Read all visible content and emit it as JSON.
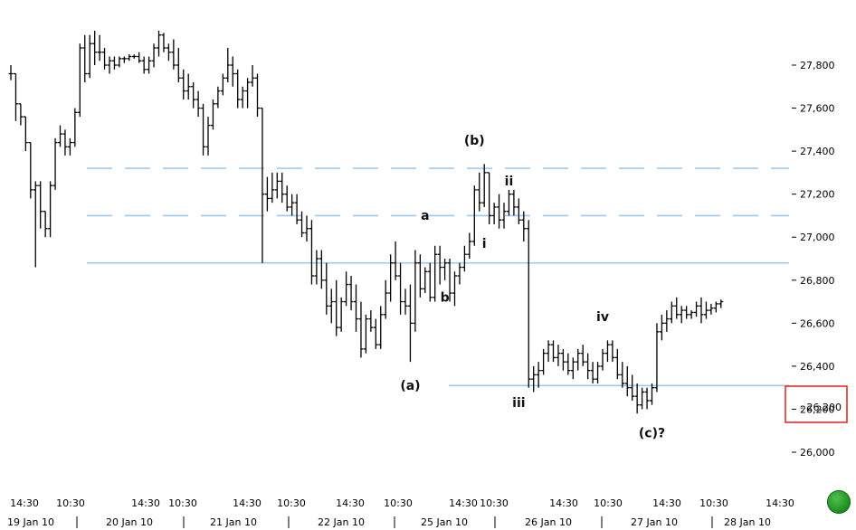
{
  "chart_data": {
    "type": "ohlc",
    "y_ticks": [
      "27,800",
      "27,600",
      "27,400",
      "27,200",
      "27,000",
      "26,800",
      "26,600",
      "26,400",
      "26,200",
      "26,000"
    ],
    "y_tick_values": [
      27800,
      27600,
      27400,
      27200,
      27000,
      26800,
      26600,
      26400,
      26200,
      26000
    ],
    "ylim": [
      25920,
      27960
    ],
    "current_price_box": "26,200",
    "x_time_ticks": [
      "14:30",
      "10:30",
      "14:30",
      "10:30",
      "14:30",
      "10:30",
      "14:30",
      "10:30",
      "14:30",
      "10:30",
      "14:30",
      "10:30",
      "14:30",
      "10:30",
      "14:30"
    ],
    "x_date_ticks": [
      "19 Jan 10",
      "20 Jan 10",
      "21 Jan 10",
      "22 Jan 10",
      "25 Jan 10",
      "26 Jan 10",
      "27 Jan 10",
      "28 Jan 10"
    ],
    "horizontal_levels": [
      {
        "value": 27320,
        "style": "dashed"
      },
      {
        "value": 27100,
        "style": "dashed"
      },
      {
        "value": 26880,
        "style": "solid"
      },
      {
        "value": 26310,
        "style": "solid"
      }
    ],
    "wave_labels": [
      {
        "text": "(b)",
        "bar": 94,
        "value": 27430
      },
      {
        "text": "ii",
        "bar": 101,
        "value": 27240
      },
      {
        "text": "a",
        "bar": 84,
        "value": 27080
      },
      {
        "text": "i",
        "bar": 96,
        "value": 26950
      },
      {
        "text": "b",
        "bar": 88,
        "value": 26700
      },
      {
        "text": "(a)",
        "bar": 81,
        "value": 26290
      },
      {
        "text": "iii",
        "bar": 103,
        "value": 26210
      },
      {
        "text": "iv",
        "bar": 120,
        "value": 26610
      },
      {
        "text": "(c)?",
        "bar": 130,
        "value": 26070
      }
    ],
    "ohlc": [
      [
        27760,
        27800,
        27730,
        27760
      ],
      [
        27760,
        27760,
        27540,
        27620
      ],
      [
        27620,
        27620,
        27520,
        27560
      ],
      [
        27560,
        27560,
        27400,
        27440
      ],
      [
        27440,
        27440,
        27180,
        27220
      ],
      [
        27220,
        27260,
        26860,
        27240
      ],
      [
        27240,
        27260,
        27040,
        27120
      ],
      [
        27120,
        27120,
        27000,
        27040
      ],
      [
        27040,
        27260,
        27000,
        27240
      ],
      [
        27240,
        27460,
        27220,
        27440
      ],
      [
        27440,
        27520,
        27420,
        27480
      ],
      [
        27480,
        27500,
        27380,
        27420
      ],
      [
        27420,
        27460,
        27380,
        27440
      ],
      [
        27440,
        27600,
        27420,
        27580
      ],
      [
        27580,
        27900,
        27560,
        27880
      ],
      [
        27880,
        27940,
        27720,
        27760
      ],
      [
        27760,
        27940,
        27740,
        27900
      ],
      [
        27900,
        27960,
        27800,
        27860
      ],
      [
        27860,
        27940,
        27820,
        27860
      ],
      [
        27860,
        27880,
        27780,
        27800
      ],
      [
        27800,
        27840,
        27760,
        27820
      ],
      [
        27820,
        27840,
        27780,
        27800
      ],
      [
        27800,
        27840,
        27790,
        27830
      ],
      [
        27830,
        27840,
        27810,
        27830
      ],
      [
        27830,
        27850,
        27820,
        27840
      ],
      [
        27840,
        27850,
        27830,
        27840
      ],
      [
        27840,
        27860,
        27810,
        27820
      ],
      [
        27820,
        27840,
        27760,
        27780
      ],
      [
        27780,
        27840,
        27760,
        27820
      ],
      [
        27820,
        27900,
        27790,
        27880
      ],
      [
        27880,
        27960,
        27840,
        27940
      ],
      [
        27940,
        27950,
        27860,
        27880
      ],
      [
        27880,
        27900,
        27820,
        27860
      ],
      [
        27860,
        27920,
        27780,
        27800
      ],
      [
        27800,
        27880,
        27720,
        27740
      ],
      [
        27740,
        27780,
        27640,
        27680
      ],
      [
        27680,
        27760,
        27640,
        27700
      ],
      [
        27700,
        27720,
        27600,
        27640
      ],
      [
        27640,
        27680,
        27560,
        27600
      ],
      [
        27600,
        27620,
        27380,
        27420
      ],
      [
        27420,
        27560,
        27380,
        27520
      ],
      [
        27520,
        27640,
        27500,
        27620
      ],
      [
        27620,
        27700,
        27600,
        27680
      ],
      [
        27680,
        27760,
        27660,
        27740
      ],
      [
        27740,
        27880,
        27720,
        27800
      ],
      [
        27800,
        27840,
        27700,
        27760
      ],
      [
        27760,
        27780,
        27600,
        27640
      ],
      [
        27640,
        27700,
        27600,
        27680
      ],
      [
        27680,
        27740,
        27600,
        27720
      ],
      [
        27720,
        27800,
        27700,
        27740
      ],
      [
        27740,
        27760,
        27560,
        27600
      ],
      [
        27600,
        27600,
        26880,
        27200
      ],
      [
        27200,
        27280,
        27120,
        27180
      ],
      [
        27180,
        27300,
        27160,
        27220
      ],
      [
        27220,
        27300,
        27180,
        27260
      ],
      [
        27260,
        27300,
        27160,
        27200
      ],
      [
        27200,
        27240,
        27120,
        27140
      ],
      [
        27140,
        27200,
        27100,
        27160
      ],
      [
        27160,
        27200,
        27060,
        27080
      ],
      [
        27080,
        27120,
        27000,
        27020
      ],
      [
        27020,
        27100,
        26980,
        27040
      ],
      [
        27040,
        27080,
        26780,
        26820
      ],
      [
        26820,
        26940,
        26780,
        26900
      ],
      [
        26900,
        26940,
        26760,
        26800
      ],
      [
        26800,
        26880,
        26640,
        26680
      ],
      [
        26680,
        26760,
        26600,
        26700
      ],
      [
        26700,
        26800,
        26540,
        26580
      ],
      [
        26580,
        26720,
        26560,
        26700
      ],
      [
        26700,
        26840,
        26680,
        26780
      ],
      [
        26780,
        26820,
        26660,
        26700
      ],
      [
        26700,
        26780,
        26560,
        26620
      ],
      [
        26620,
        26700,
        26440,
        26480
      ],
      [
        26480,
        26640,
        26460,
        26620
      ],
      [
        26620,
        26660,
        26560,
        26580
      ],
      [
        26580,
        26620,
        26480,
        26500
      ],
      [
        26500,
        26680,
        26480,
        26640
      ],
      [
        26640,
        26800,
        26620,
        26740
      ],
      [
        26740,
        26920,
        26700,
        26880
      ],
      [
        26880,
        26980,
        26800,
        26820
      ],
      [
        26820,
        26880,
        26640,
        26700
      ],
      [
        26700,
        26760,
        26640,
        26680
      ],
      [
        26680,
        26780,
        26420,
        26600
      ],
      [
        26600,
        26940,
        26560,
        26880
      ],
      [
        26880,
        26920,
        26720,
        26760
      ],
      [
        26760,
        26860,
        26740,
        26840
      ],
      [
        26840,
        26880,
        26700,
        26720
      ],
      [
        26720,
        26960,
        26700,
        26920
      ],
      [
        26920,
        26960,
        26780,
        26860
      ],
      [
        26860,
        26900,
        26800,
        26880
      ],
      [
        26880,
        26900,
        26700,
        26740
      ],
      [
        26740,
        26840,
        26680,
        26820
      ],
      [
        26820,
        26880,
        26780,
        26860
      ],
      [
        26860,
        26960,
        26840,
        26920
      ],
      [
        26920,
        27020,
        26900,
        26980
      ],
      [
        26980,
        27240,
        26960,
        27220
      ],
      [
        27220,
        27300,
        27120,
        27160
      ],
      [
        27160,
        27340,
        27140,
        27300
      ],
      [
        27300,
        27300,
        27060,
        27100
      ],
      [
        27100,
        27160,
        27060,
        27140
      ],
      [
        27140,
        27200,
        27040,
        27080
      ],
      [
        27080,
        27160,
        27040,
        27120
      ],
      [
        27120,
        27220,
        27100,
        27200
      ],
      [
        27200,
        27220,
        27100,
        27140
      ],
      [
        27140,
        27180,
        27060,
        27080
      ],
      [
        27080,
        27120,
        26980,
        27040
      ],
      [
        27040,
        27080,
        26300,
        26340
      ],
      [
        26340,
        26400,
        26280,
        26360
      ],
      [
        26360,
        26420,
        26300,
        26380
      ],
      [
        26380,
        26480,
        26360,
        26460
      ],
      [
        26460,
        26520,
        26420,
        26500
      ],
      [
        26500,
        26520,
        26420,
        26440
      ],
      [
        26440,
        26500,
        26400,
        26460
      ],
      [
        26460,
        26480,
        26380,
        26420
      ],
      [
        26420,
        26460,
        26360,
        26380
      ],
      [
        26380,
        26440,
        26340,
        26420
      ],
      [
        26420,
        26480,
        26380,
        26460
      ],
      [
        26460,
        26500,
        26400,
        26420
      ],
      [
        26420,
        26460,
        26340,
        26380
      ],
      [
        26380,
        26420,
        26320,
        26340
      ],
      [
        26340,
        26420,
        26320,
        26400
      ],
      [
        26400,
        26480,
        26380,
        26460
      ],
      [
        26460,
        26520,
        26420,
        26500
      ],
      [
        26500,
        26520,
        26420,
        26440
      ],
      [
        26440,
        26480,
        26340,
        26360
      ],
      [
        26360,
        26420,
        26300,
        26320
      ],
      [
        26320,
        26400,
        26260,
        26300
      ],
      [
        26300,
        26360,
        26240,
        26260
      ],
      [
        26260,
        26320,
        26180,
        26220
      ],
      [
        26220,
        26300,
        26200,
        26280
      ],
      [
        26280,
        26300,
        26200,
        26240
      ],
      [
        26240,
        26320,
        26220,
        26300
      ],
      [
        26300,
        26600,
        26280,
        26560
      ],
      [
        26560,
        26640,
        26520,
        26600
      ],
      [
        26600,
        26660,
        26560,
        26620
      ],
      [
        26620,
        26700,
        26600,
        26680
      ],
      [
        26680,
        26720,
        26620,
        26640
      ],
      [
        26640,
        26680,
        26600,
        26660
      ],
      [
        26660,
        26680,
        26620,
        26640
      ],
      [
        26640,
        26660,
        26620,
        26650
      ],
      [
        26650,
        26700,
        26630,
        26680
      ],
      [
        26680,
        26720,
        26600,
        26640
      ],
      [
        26640,
        26700,
        26620,
        26660
      ],
      [
        26660,
        26690,
        26640,
        26670
      ],
      [
        26670,
        26700,
        26650,
        26690
      ],
      [
        26690,
        26710,
        26670,
        26700
      ]
    ]
  }
}
